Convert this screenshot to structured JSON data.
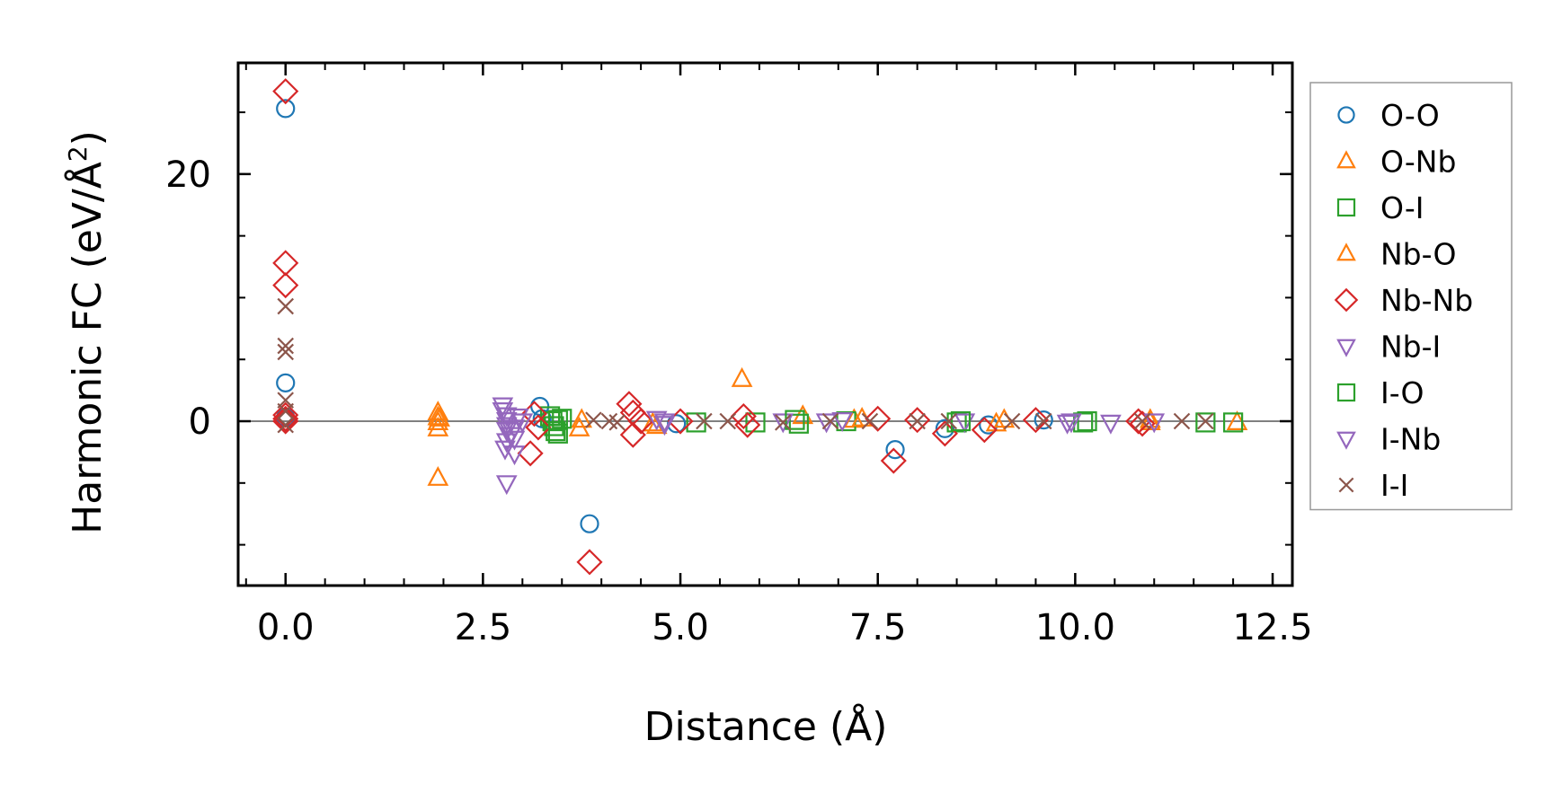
{
  "chart_data": {
    "type": "scatter",
    "xlabel": "Distance (Å)",
    "ylabel_main": "Harmonic FC (eV/Å",
    "ylabel_sup": "2",
    "ylabel_end": ")",
    "xlim": [
      -0.6,
      12.75
    ],
    "ylim": [
      -13.3,
      29
    ],
    "xticks": [
      0.0,
      2.5,
      5.0,
      7.5,
      10.0,
      12.5
    ],
    "xtick_labels": [
      "0.0",
      "2.5",
      "5.0",
      "7.5",
      "10.0",
      "12.5"
    ],
    "yticks": [
      0,
      20
    ],
    "ytick_labels": [
      "0",
      "20"
    ],
    "x_minor_step": 0.5,
    "y_minor_step": 5,
    "zero_line": true,
    "legend_position": "outside-right",
    "series": [
      {
        "name": "O-O",
        "marker": "circle",
        "color": "#1f77b4",
        "points": [
          [
            0,
            25.3
          ],
          [
            0,
            3.1
          ],
          [
            0,
            0.3
          ],
          [
            3.22,
            1.2
          ],
          [
            3.25,
            0.2
          ],
          [
            3.85,
            -8.3
          ],
          [
            4.95,
            -0.2
          ],
          [
            7.72,
            -2.3
          ],
          [
            8.35,
            -0.6
          ],
          [
            8.9,
            -0.3
          ],
          [
            9.6,
            0.1
          ]
        ]
      },
      {
        "name": "O-Nb",
        "marker": "triangle-up",
        "color": "#ff7f0e",
        "points": [
          [
            1.93,
            0.7
          ],
          [
            1.93,
            0.3
          ],
          [
            1.93,
            -0.1
          ],
          [
            1.93,
            -0.6
          ],
          [
            1.93,
            -4.6
          ],
          [
            3.72,
            -0.6
          ],
          [
            4.7,
            -0.4
          ],
          [
            5.78,
            3.4
          ],
          [
            6.55,
            0.4
          ],
          [
            7.2,
            0.1
          ],
          [
            9.1,
            0.1
          ],
          [
            10.95,
            -0.1
          ],
          [
            12.05,
            -0.1
          ]
        ]
      },
      {
        "name": "O-I",
        "marker": "square",
        "color": "#2ca02c",
        "points": [
          [
            3.35,
            0.4
          ],
          [
            3.38,
            0.0
          ],
          [
            3.4,
            -0.4
          ],
          [
            3.42,
            -0.8
          ],
          [
            3.45,
            -1.0
          ],
          [
            3.5,
            0.2
          ],
          [
            5.2,
            -0.1
          ],
          [
            5.95,
            -0.1
          ],
          [
            6.5,
            -0.2
          ],
          [
            7.1,
            0.0
          ],
          [
            8.5,
            -0.1
          ],
          [
            10.1,
            -0.1
          ],
          [
            11.65,
            -0.1
          ],
          [
            12.0,
            -0.1
          ]
        ]
      },
      {
        "name": "Nb-O",
        "marker": "triangle-up",
        "color": "#ff7f0e",
        "points": [
          [
            1.95,
            0.2
          ],
          [
            3.75,
            0.1
          ],
          [
            4.65,
            -0.2
          ],
          [
            7.3,
            0.2
          ],
          [
            9.0,
            -0.2
          ],
          [
            10.95,
            0.1
          ]
        ]
      },
      {
        "name": "Nb-Nb",
        "marker": "diamond",
        "color": "#d62728",
        "points": [
          [
            0,
            26.7
          ],
          [
            0,
            12.8
          ],
          [
            0,
            11.0
          ],
          [
            0,
            0.5
          ],
          [
            0,
            0.2
          ],
          [
            0,
            0.0
          ],
          [
            3.1,
            -2.6
          ],
          [
            3.15,
            0.6
          ],
          [
            3.2,
            -0.5
          ],
          [
            3.85,
            -11.4
          ],
          [
            4.35,
            1.4
          ],
          [
            4.4,
            0.7
          ],
          [
            4.4,
            -1.1
          ],
          [
            4.5,
            0.0
          ],
          [
            5.0,
            0.0
          ],
          [
            5.8,
            0.4
          ],
          [
            5.85,
            -0.3
          ],
          [
            7.5,
            0.2
          ],
          [
            7.7,
            -3.2
          ],
          [
            8.0,
            0.1
          ],
          [
            8.35,
            -1.0
          ],
          [
            8.85,
            -0.7
          ],
          [
            9.5,
            0.1
          ],
          [
            10.8,
            0.0
          ],
          [
            10.85,
            -0.2
          ]
        ]
      },
      {
        "name": "Nb-I",
        "marker": "triangle-down",
        "color": "#9467bd",
        "points": [
          [
            2.75,
            1.3
          ],
          [
            2.75,
            0.9
          ],
          [
            2.8,
            0.5
          ],
          [
            2.8,
            0.1
          ],
          [
            2.8,
            -0.3
          ],
          [
            2.8,
            -0.7
          ],
          [
            2.85,
            -1.1
          ],
          [
            2.8,
            -1.6
          ],
          [
            2.78,
            -2.2
          ],
          [
            2.8,
            -5.0
          ],
          [
            2.9,
            -0.5
          ],
          [
            2.95,
            0.4
          ],
          [
            4.7,
            0.2
          ],
          [
            4.8,
            -0.2
          ],
          [
            6.3,
            0.0
          ],
          [
            7.05,
            0.1
          ],
          [
            8.6,
            0.0
          ],
          [
            9.9,
            -0.1
          ],
          [
            10.45,
            -0.1
          ]
        ]
      },
      {
        "name": "I-O",
        "marker": "square",
        "color": "#2ca02c",
        "points": [
          [
            3.45,
            0.1
          ],
          [
            6.45,
            0.1
          ],
          [
            8.55,
            0.0
          ],
          [
            10.15,
            0.0
          ]
        ]
      },
      {
        "name": "I-Nb",
        "marker": "triangle-down",
        "color": "#9467bd",
        "points": [
          [
            2.9,
            -1.4
          ],
          [
            2.9,
            -2.6
          ],
          [
            3.0,
            0.0
          ],
          [
            4.8,
            0.0
          ],
          [
            6.85,
            0.0
          ],
          [
            9.95,
            0.0
          ],
          [
            11.0,
            0.0
          ]
        ]
      },
      {
        "name": "I-I",
        "marker": "x",
        "color": "#8c564b",
        "points": [
          [
            0,
            9.3
          ],
          [
            0,
            6.1
          ],
          [
            0,
            5.6
          ],
          [
            0,
            1.7
          ],
          [
            0,
            0.8
          ],
          [
            0,
            -0.3
          ],
          [
            3.9,
            0.1
          ],
          [
            4.1,
            0.0
          ],
          [
            4.2,
            -0.1
          ],
          [
            5.3,
            0.0
          ],
          [
            5.6,
            0.0
          ],
          [
            6.3,
            -0.1
          ],
          [
            6.9,
            0.0
          ],
          [
            7.4,
            0.0
          ],
          [
            8.0,
            0.0
          ],
          [
            8.4,
            0.0
          ],
          [
            9.2,
            0.0
          ],
          [
            9.6,
            0.0
          ],
          [
            10.85,
            0.0
          ],
          [
            11.35,
            0.0
          ],
          [
            11.65,
            0.0
          ]
        ]
      }
    ]
  }
}
